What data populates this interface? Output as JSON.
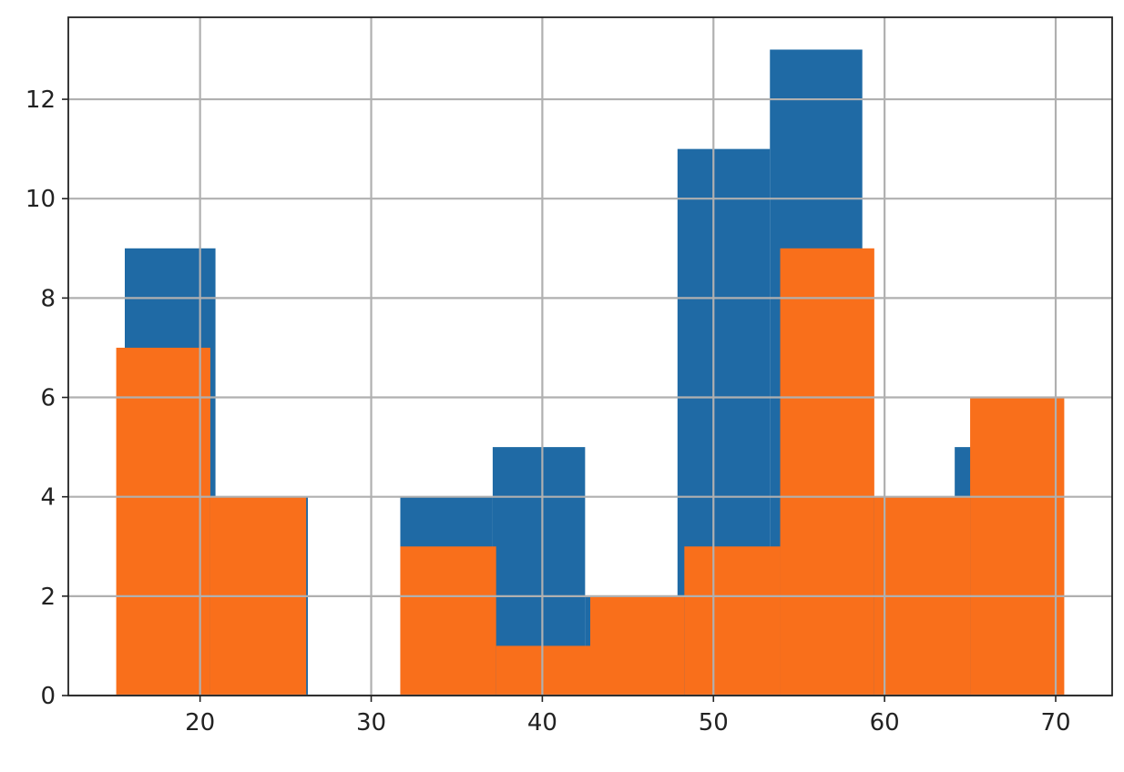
{
  "chart_data": {
    "type": "histogram",
    "xlim": [
      12.3,
      73.3
    ],
    "ylim": [
      0,
      13.65
    ],
    "x_ticks": [
      20,
      30,
      40,
      50,
      60,
      70
    ],
    "y_ticks": [
      0,
      2,
      4,
      6,
      8,
      10,
      12
    ],
    "x_tick_labels": [
      "20",
      "30",
      "40",
      "50",
      "60",
      "70"
    ],
    "y_tick_labels": [
      "0",
      "2",
      "4",
      "6",
      "8",
      "10",
      "12"
    ],
    "grid": true,
    "series": [
      {
        "color": "#1f6aa5",
        "bins": [
          15.6,
          20.9,
          26.3,
          31.7,
          37.1,
          42.5,
          47.9,
          53.3,
          58.7,
          64.1,
          69.5
        ],
        "counts": [
          9,
          4,
          0,
          4,
          5,
          2,
          11,
          13,
          4,
          5
        ]
      },
      {
        "color": "#f96f1b",
        "bins": [
          15.1,
          20.6,
          26.2,
          31.7,
          37.3,
          42.8,
          48.3,
          53.9,
          59.4,
          65.0,
          70.5
        ],
        "counts": [
          7,
          4,
          0,
          3,
          1,
          2,
          3,
          9,
          4,
          6
        ]
      }
    ]
  }
}
